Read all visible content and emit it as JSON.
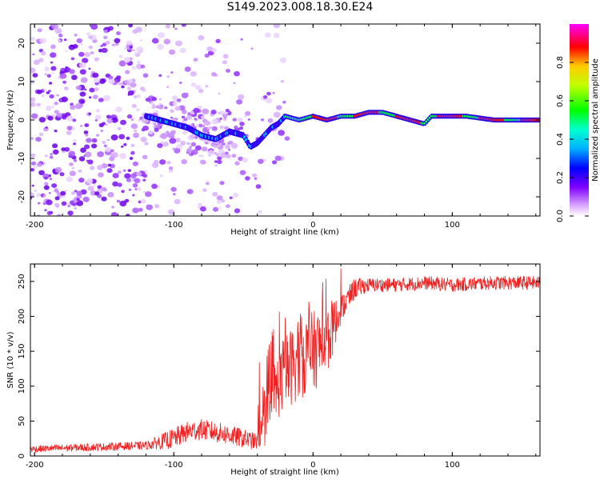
{
  "title": "S149.2023.008.18.30.E24",
  "colors": {
    "snr_line": "#ee2222",
    "spectrum_scatter": "#8800ff",
    "axis": "#000000",
    "background": "#ffffff"
  },
  "chart_data": [
    {
      "type": "heatmap",
      "name": "spectrogram",
      "xlabel": "Height of straight line (km)",
      "ylabel": "Frequency (Hz)",
      "xlim": [
        -203,
        163
      ],
      "ylim": [
        -25,
        25
      ],
      "xticks": [
        "-200",
        "-100",
        "0",
        "100"
      ],
      "yticks": [
        "20",
        "10",
        "0",
        "-10",
        "-20"
      ],
      "colorbar": {
        "label": "Normalized spectral amplitude",
        "range": [
          0,
          1
        ],
        "ticks": [
          "0.0",
          "0.2",
          "0.4",
          "0.6",
          "0.8"
        ]
      },
      "ridge": {
        "description_units": "km vs Hz",
        "x": [
          -120,
          -110,
          -100,
          -90,
          -80,
          -70,
          -60,
          -50,
          -45,
          -40,
          -35,
          -30,
          -25,
          -20,
          -10,
          0,
          10,
          20,
          30,
          40,
          50,
          60,
          70,
          80,
          85,
          95,
          110,
          130,
          150,
          163
        ],
        "y": [
          1,
          0,
          -1,
          -2,
          -4,
          -5,
          -3,
          -4,
          -7,
          -6,
          -4,
          -2,
          -1,
          1,
          0,
          1,
          0,
          1,
          1,
          2,
          2,
          1,
          0,
          -1,
          1,
          1,
          1,
          0,
          0,
          0
        ]
      }
    },
    {
      "type": "line",
      "name": "snr",
      "xlabel": "Height of straight line (km)",
      "ylabel": "SNR (10 * v/v)",
      "xlim": [
        -203,
        163
      ],
      "ylim": [
        0,
        275
      ],
      "xticks": [
        "-200",
        "-100",
        "0",
        "100"
      ],
      "yticks": [
        "0",
        "50",
        "100",
        "150",
        "200",
        "250"
      ],
      "envelope": {
        "x": [
          -203,
          -120,
          -100,
          -90,
          -80,
          -60,
          -40,
          -32,
          -28,
          -20,
          -10,
          0,
          10,
          20,
          30,
          40,
          60,
          80,
          100,
          130,
          163
        ],
        "y": [
          10,
          15,
          25,
          35,
          38,
          30,
          20,
          60,
          90,
          120,
          140,
          150,
          165,
          210,
          240,
          245,
          245,
          248,
          245,
          248,
          248
        ]
      },
      "noise_amplitude": {
        "x": [
          -203,
          -120,
          -100,
          -60,
          -40,
          -32,
          -10,
          10,
          20,
          40,
          163
        ],
        "y": [
          5,
          6,
          15,
          15,
          12,
          45,
          60,
          55,
          20,
          10,
          10
        ]
      }
    }
  ]
}
